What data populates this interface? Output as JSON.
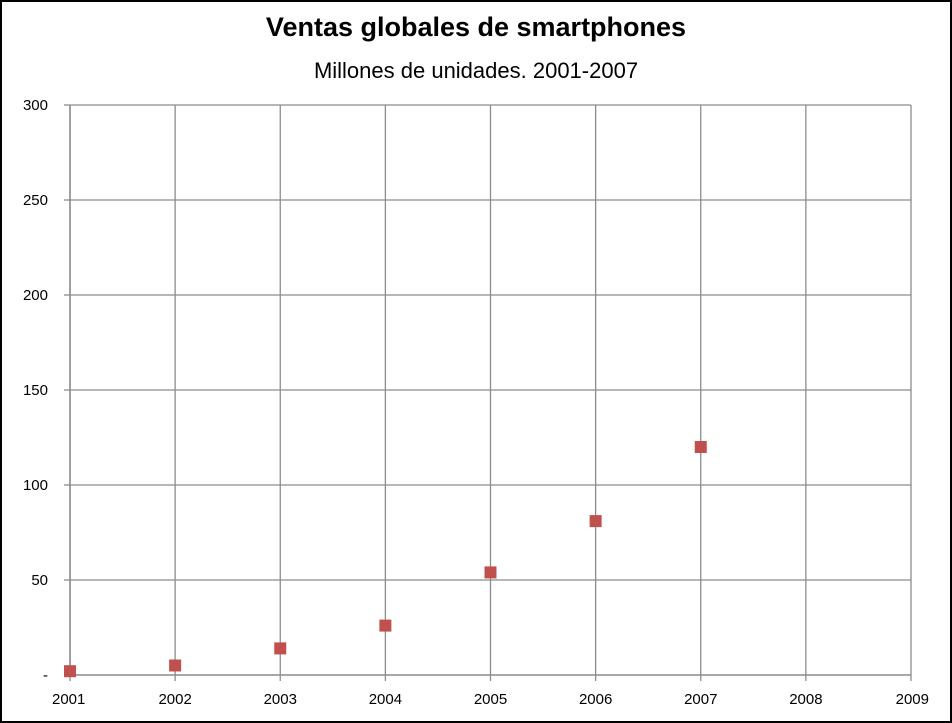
{
  "chart_data": {
    "type": "scatter",
    "title": "Ventas globales de smartphones",
    "subtitle": "Millones  de unidades. 2001-2007",
    "xlabel": "",
    "ylabel": "",
    "xlim": [
      2001,
      2009
    ],
    "ylim": [
      0,
      300
    ],
    "x_ticks": [
      "2001",
      "2002",
      "2003",
      "2004",
      "2005",
      "2006",
      "2007",
      "2008",
      "2009"
    ],
    "y_ticks": [
      "-",
      "50",
      "100",
      "150",
      "200",
      "250",
      "300"
    ],
    "grid": true,
    "legend": "none",
    "marker_color": "#c0504d",
    "series": [
      {
        "x": [
          2001,
          2002,
          2003,
          2004,
          2005,
          2006,
          2007
        ],
        "y": [
          2,
          5,
          14,
          26,
          54,
          81,
          120
        ]
      }
    ]
  }
}
